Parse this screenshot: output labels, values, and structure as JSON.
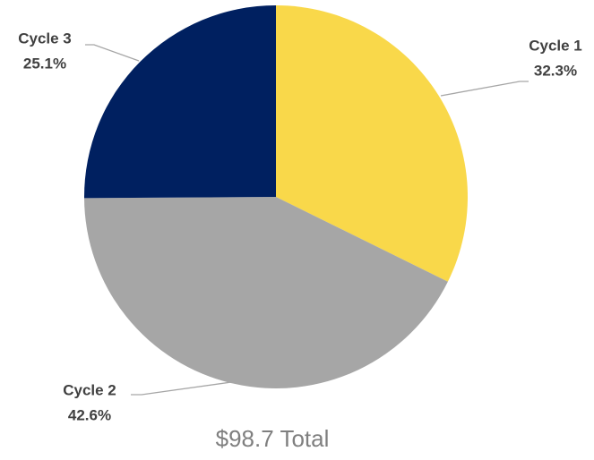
{
  "chart_data": {
    "type": "pie",
    "categories": [
      "Cycle 1",
      "Cycle 2",
      "Cycle 3"
    ],
    "values": [
      32.3,
      42.6,
      25.1
    ],
    "value_labels": [
      "32.3%",
      "42.6%",
      "25.1%"
    ],
    "colors": [
      "#F9D84A",
      "#A6A6A6",
      "#002060"
    ],
    "annotation": "$98.7 Total"
  }
}
